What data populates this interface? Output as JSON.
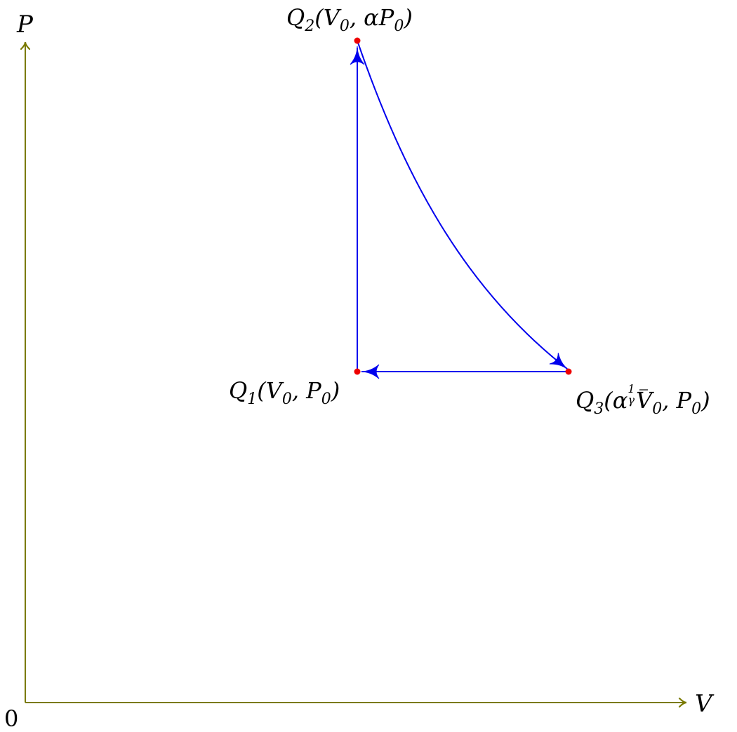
{
  "axes": {
    "x_label": "V",
    "y_label": "P",
    "origin_label": "0",
    "color": "#7a7a00"
  },
  "points": {
    "q1": {
      "name": "Q",
      "sub": "1",
      "coords": "(V",
      "coords_sub": "0",
      "coords_rest": ", P",
      "coords_rest_sub": "0",
      "close": ")"
    },
    "q2": {
      "name": "Q",
      "sub": "2",
      "coords": "(V",
      "coords_sub": "0",
      "coords_rest": ", αP",
      "coords_rest_sub": "0",
      "close": ")"
    },
    "q3": {
      "name": "Q",
      "sub": "3",
      "coords": "(α",
      "exp_num": "1",
      "exp_den": "γ",
      "coords_mid": "V",
      "coords_mid_sub": "0",
      "coords_rest": ", P",
      "coords_rest_sub": "0",
      "close": ")"
    }
  },
  "colors": {
    "process": "#0000ee",
    "point": "#ee0000",
    "axis": "#7a7a00"
  }
}
